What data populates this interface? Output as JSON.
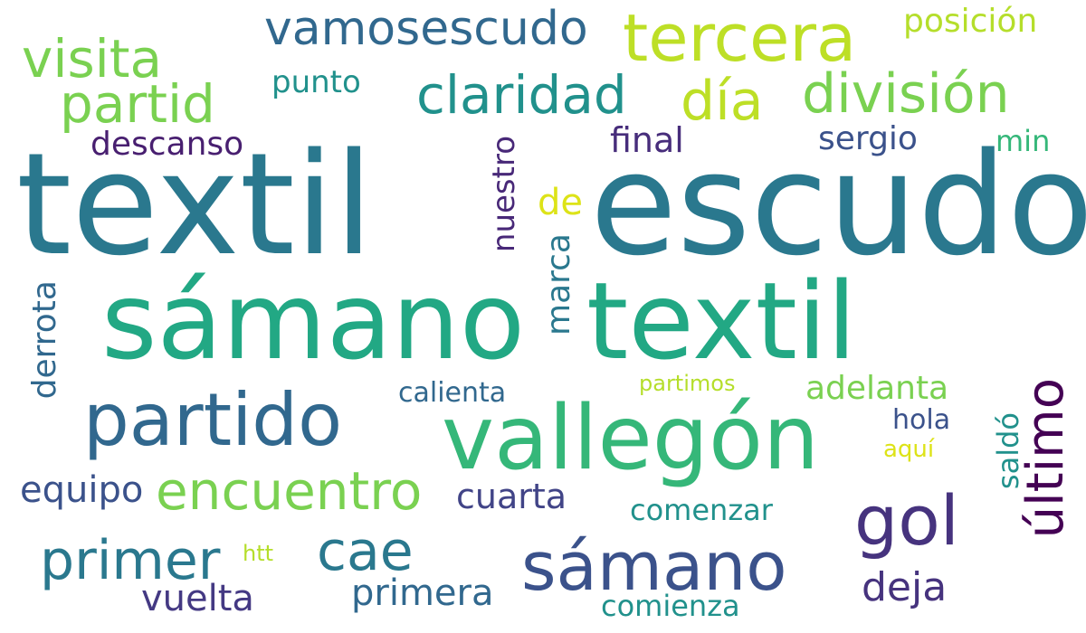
{
  "words": {
    "textil_1": "textil",
    "escudo": "escudo",
    "samano_1": "sámano",
    "textil_2": "textil",
    "vallegon": "vallegón",
    "partido": "partido",
    "encuentro": "encuentro",
    "samano_2": "sámano",
    "gol": "gol",
    "ultimo": "último",
    "primer": "primer",
    "cae": "cae",
    "tercera": "tercera",
    "division": "división",
    "claridad": "claridad",
    "dia": "día",
    "visita": "visita",
    "partid": "partid",
    "vamosescudo": "vamosescudo",
    "posicion": "posición",
    "punto": "punto",
    "descanso": "descanso",
    "final": "final",
    "sergio": "sergio",
    "min": "min",
    "nuestro": "nuestro",
    "de": "de",
    "marca": "marca",
    "derrota": "derrota",
    "calienta": "calienta",
    "partimos": "partimos",
    "adelanta": "adelanta",
    "hola": "hola",
    "aqui": "aquí",
    "saldo": "saldó",
    "equipo": "equipo",
    "cuarta": "cuarta",
    "comenzar": "comenzar",
    "htt": "htt",
    "vuelta": "vuelta",
    "primera": "primera",
    "deja": "deja",
    "comienza": "comienza"
  },
  "colors": {
    "textil_1": "#2a788e",
    "escudo": "#2a788e",
    "samano_1": "#22a884",
    "textil_2": "#22a884",
    "vallegon": "#35b779",
    "partido": "#31688e",
    "encuentro": "#7ad151",
    "samano_2": "#3b528b",
    "gol": "#46337e",
    "ultimo": "#440154",
    "primer": "#2a788e",
    "cae": "#2a788e",
    "tercera": "#bddf26",
    "division": "#7ad151",
    "claridad": "#21918c",
    "dia": "#bddf26",
    "visita": "#7ad151",
    "partid": "#7ad151",
    "vamosescudo": "#31688e",
    "posicion": "#b5de2b",
    "punto": "#21918c",
    "descanso": "#481f70",
    "final": "#472d7b",
    "sergio": "#3b528b",
    "min": "#35b779",
    "nuestro": "#482878",
    "de": "#dde318",
    "marca": "#2a788e",
    "derrota": "#31688e",
    "calienta": "#31688e",
    "partimos": "#b5de2b",
    "adelanta": "#7ad151",
    "hola": "#3b528b",
    "aqui": "#dde318",
    "saldo": "#21918c",
    "equipo": "#3b528b",
    "cuarta": "#414487",
    "comenzar": "#21918c",
    "htt": "#b5de2b",
    "vuelta": "#443983",
    "primera": "#31688e",
    "deja": "#46337e",
    "comienza": "#21918c"
  }
}
